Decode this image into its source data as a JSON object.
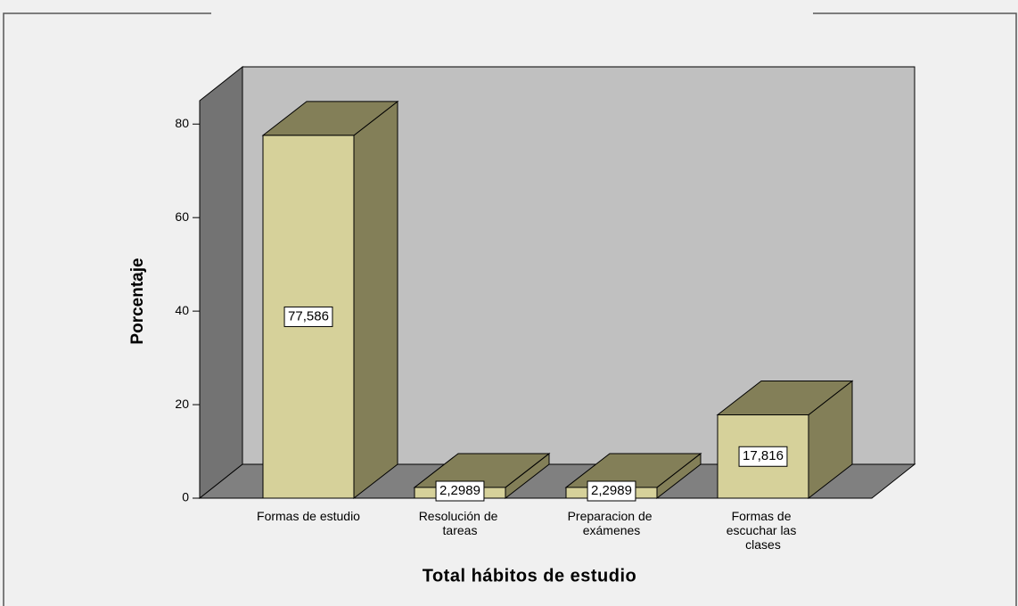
{
  "chart_data": {
    "type": "bar3d",
    "categories": [
      "Formas de estudio",
      "Resolución de tareas",
      "Preparacion de exámenes",
      "Formas de escuchar las clases"
    ],
    "values": [
      77.586,
      2.2989,
      2.2989,
      17.816
    ],
    "value_labels": [
      "77,586",
      "2,2989",
      "2,2989",
      "17,816"
    ],
    "color": "#d6d19a",
    "y_label": "Porcentaje",
    "x_label": "Total hábitos de estudio",
    "ylim": [
      0,
      85
    ],
    "yticks": [
      0,
      20,
      40,
      60,
      80
    ]
  }
}
